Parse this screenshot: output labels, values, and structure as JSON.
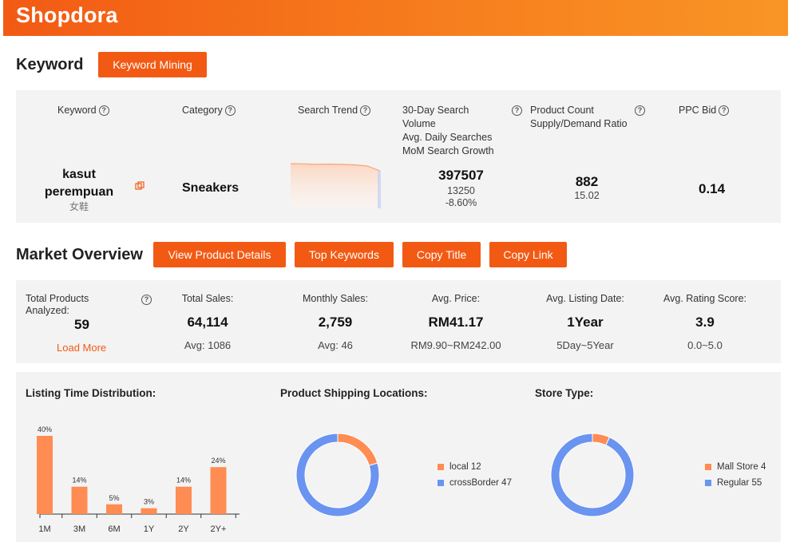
{
  "app": {
    "logo": "Shopdora"
  },
  "keyword_section": {
    "title": "Keyword",
    "mining_button": "Keyword Mining",
    "headers": {
      "keyword": "Keyword",
      "category": "Category",
      "search_trend": "Search Trend",
      "search_volume_lines": [
        "30-Day Search",
        "Volume",
        "Avg. Daily Searches",
        "MoM Search Growth"
      ],
      "product_count_lines": [
        "Product Count",
        "Supply/Demand Ratio"
      ],
      "ppc_bid": "PPC Bid"
    },
    "row": {
      "keyword_lines": [
        "kasut",
        "perempuan"
      ],
      "keyword_translation": "女鞋",
      "category": "Sneakers",
      "search_volume": "397507",
      "avg_daily_searches": "13250",
      "mom_growth": "-8.60%",
      "product_count": "882",
      "supply_demand_ratio": "15.02",
      "ppc_bid": "0.14",
      "trend_values": [
        100,
        99,
        97,
        98,
        97,
        95,
        90,
        70
      ]
    }
  },
  "market_overview": {
    "title": "Market Overview",
    "buttons": {
      "view_details": "View Product Details",
      "top_keywords": "Top Keywords",
      "copy_title": "Copy Title",
      "copy_link": "Copy Link"
    },
    "stats": {
      "total_products_label_lines": [
        "Total Products",
        "Analyzed:"
      ],
      "total_products": "59",
      "load_more": "Load More",
      "total_sales_label": "Total Sales:",
      "total_sales": "64,114",
      "total_sales_avg": "Avg: 1086",
      "monthly_sales_label": "Monthly Sales:",
      "monthly_sales": "2,759",
      "monthly_sales_avg": "Avg: 46",
      "avg_price_label": "Avg. Price:",
      "avg_price": "RM41.17",
      "avg_price_range": "RM9.90~RM242.00",
      "avg_listing_label": "Avg. Listing Date:",
      "avg_listing": "1Year",
      "avg_listing_range": "5Day~5Year",
      "avg_rating_label": "Avg. Rating Score:",
      "avg_rating": "3.9",
      "avg_rating_range": "0.0~5.0"
    }
  },
  "chart_data": [
    {
      "type": "bar",
      "title": "Listing Time Distribution:",
      "categories": [
        "1M",
        "3M",
        "6M",
        "1Y",
        "2Y",
        "2Y+"
      ],
      "values": [
        40,
        14,
        5,
        3,
        14,
        24
      ],
      "labels": [
        "40%",
        "14%",
        "5%",
        "3%",
        "14%",
        "24%"
      ],
      "color": "#ff8c52"
    },
    {
      "type": "pie",
      "title": "Product Shipping Locations:",
      "slices": [
        {
          "name": "local",
          "value": 12,
          "label": "local 12",
          "color": "#ff8c52"
        },
        {
          "name": "crossBorder",
          "value": 47,
          "label": "crossBorder 47",
          "color": "#6a94f0"
        }
      ]
    },
    {
      "type": "pie",
      "title": "Store Type:",
      "slices": [
        {
          "name": "Mall Store",
          "value": 4,
          "label": "Mall Store 4",
          "color": "#ff8c52"
        },
        {
          "name": "Regular",
          "value": 55,
          "label": "Regular 55",
          "color": "#6a94f0"
        }
      ]
    }
  ]
}
